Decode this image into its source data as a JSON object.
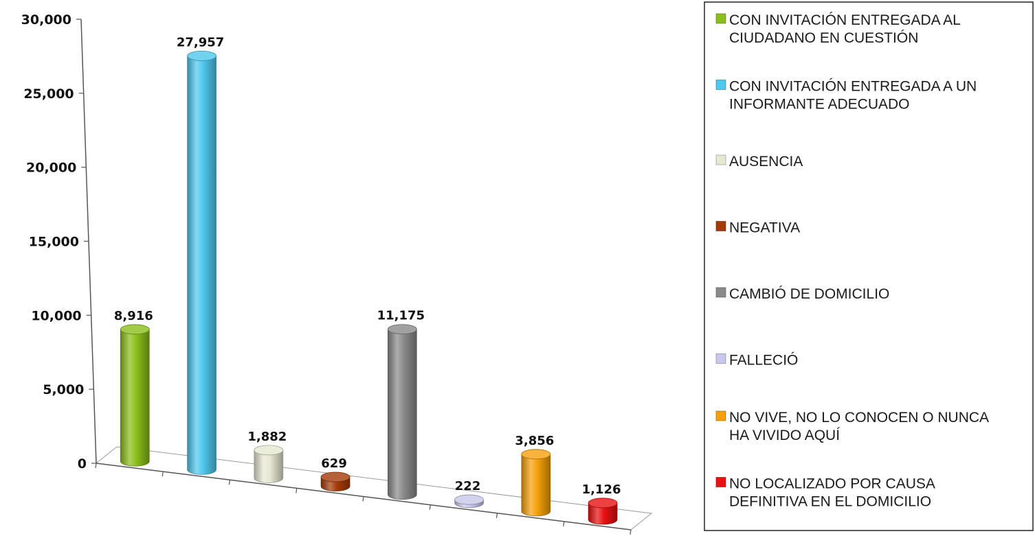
{
  "chart_data": {
    "type": "bar",
    "style": "3d-cylinder",
    "ylim": [
      0,
      30000
    ],
    "yticks": [
      {
        "value": 0,
        "label": "0"
      },
      {
        "value": 5000,
        "label": "5,000"
      },
      {
        "value": 10000,
        "label": "10,000"
      },
      {
        "value": 15000,
        "label": "15,000"
      },
      {
        "value": 20000,
        "label": "20,000"
      },
      {
        "value": 25000,
        "label": "25,000"
      },
      {
        "value": 30000,
        "label": "30,000"
      }
    ],
    "grid": false,
    "legend_position": "right",
    "series": [
      {
        "name": "CON INVITACIÓN ENTREGADA AL CIUDADANO EN CUESTIÓN",
        "name_lines": [
          "CON INVITACIÓN ENTREGADA AL",
          "CIUDADANO EN CUESTIÓN"
        ],
        "value": 8916,
        "label": "8,916",
        "color": "#8bbf1a"
      },
      {
        "name": "CON INVITACIÓN ENTREGADA A UN INFORMANTE ADECUADO",
        "name_lines": [
          "CON INVITACIÓN ENTREGADA A UN",
          "INFORMANTE ADECUADO"
        ],
        "value": 27957,
        "label": "27,957",
        "color": "#4fc8ee"
      },
      {
        "name": "AUSENCIA",
        "name_lines": [
          "AUSENCIA"
        ],
        "value": 1882,
        "label": "1,882",
        "color": "#e6e8d2"
      },
      {
        "name": "NEGATIVA",
        "name_lines": [
          "NEGATIVA"
        ],
        "value": 629,
        "label": "629",
        "color": "#a43a08"
      },
      {
        "name": "CAMBIÓ DE DOMICILIO",
        "name_lines": [
          "CAMBIÓ DE DOMICILIO"
        ],
        "value": 11175,
        "label": "11,175",
        "color": "#8a8a8a"
      },
      {
        "name": "FALLECIÓ",
        "name_lines": [
          "FALLECIÓ"
        ],
        "value": 222,
        "label": "222",
        "color": "#c8c8ec"
      },
      {
        "name": "NO VIVE, NO LO CONOCEN O NUNCA HA VIVIDO AQUÍ",
        "name_lines": [
          "NO VIVE, NO LO CONOCEN O NUNCA",
          "HA VIVIDO AQUÍ"
        ],
        "value": 3856,
        "label": "3,856",
        "color": "#f5a00a"
      },
      {
        "name": "NO LOCALIZADO POR CAUSA DEFINITIVA EN EL DOMICILIO",
        "name_lines": [
          "NO LOCALIZADO POR CAUSA",
          "DEFINITIVA EN EL DOMICILIO"
        ],
        "value": 1126,
        "label": "1,126",
        "color": "#e81010"
      }
    ]
  }
}
